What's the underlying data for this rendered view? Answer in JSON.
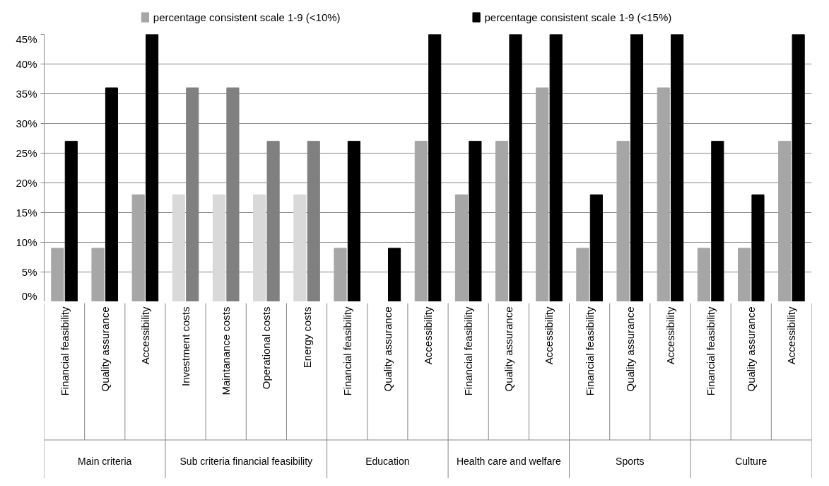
{
  "chart_data": {
    "type": "bar",
    "categories": [
      [
        "Main criteria",
        "Financial feasibility"
      ],
      [
        null,
        "Quality assurance"
      ],
      [
        null,
        "Accessibility"
      ],
      [
        "Sub criteria financial feasibility",
        "Investment costs"
      ],
      [
        null,
        "Maintanance costs"
      ],
      [
        null,
        "Operational costs"
      ],
      [
        null,
        "Energy costs"
      ],
      [
        "Education",
        "Financial feasibility"
      ],
      [
        null,
        "Quality assurance"
      ],
      [
        null,
        "Accessibility"
      ],
      [
        "Health care and welfare",
        "Financial feasibility"
      ],
      [
        null,
        "Quality assurance"
      ],
      [
        null,
        "Accessibility"
      ],
      [
        "Sports",
        "Financial feasibility"
      ],
      [
        null,
        "Quality assurance"
      ],
      [
        null,
        "Accessibility"
      ],
      [
        "Culture",
        "Financial feasibility"
      ],
      [
        null,
        "Quality assurance"
      ],
      [
        null,
        "Accessibility"
      ]
    ],
    "series": [
      {
        "name": "percentage consistent scale 1-9 (<10%)",
        "color": "#a6a6a6",
        "colors": [
          "#a6a6a6",
          "#a6a6a6",
          "#a6a6a6",
          "#d9d9d9",
          "#d9d9d9",
          "#d9d9d9",
          "#d9d9d9",
          "#a6a6a6",
          "#a6a6a6",
          "#a6a6a6",
          "#a6a6a6",
          "#a6a6a6",
          "#a6a6a6",
          "#a6a6a6",
          "#a6a6a6",
          "#a6a6a6",
          "#a6a6a6",
          "#a6a6a6",
          "#a6a6a6"
        ],
        "values": [
          9,
          9,
          18,
          18,
          18,
          18,
          18,
          9,
          0,
          27,
          18,
          27,
          36,
          9,
          27,
          36,
          9,
          9,
          27
        ]
      },
      {
        "name": "percentage consistent scale 1-9 (<15%)",
        "color": "#000000",
        "colors": [
          "#000000",
          "#000000",
          "#000000",
          "#808080",
          "#808080",
          "#808080",
          "#808080",
          "#000000",
          "#000000",
          "#000000",
          "#000000",
          "#000000",
          "#000000",
          "#000000",
          "#000000",
          "#000000",
          "#000000",
          "#000000",
          "#000000"
        ],
        "values": [
          27,
          36,
          45,
          36,
          36,
          27,
          27,
          27,
          9,
          45,
          27,
          45,
          45,
          18,
          45,
          45,
          27,
          18,
          45
        ]
      }
    ],
    "ylim": [
      0,
      45
    ],
    "yticks": [
      {
        "value": 0,
        "label": "0%"
      },
      {
        "value": 5,
        "label": "5%"
      },
      {
        "value": 10,
        "label": "10%"
      },
      {
        "value": 15,
        "label": "15%"
      },
      {
        "value": 20,
        "label": "20%"
      },
      {
        "value": 25,
        "label": "25%"
      },
      {
        "value": 30,
        "label": "30%"
      },
      {
        "value": 35,
        "label": "35%"
      },
      {
        "value": 40,
        "label": "40%"
      },
      {
        "value": 45,
        "label": "45%"
      }
    ],
    "grid": "y",
    "legend": "top"
  }
}
